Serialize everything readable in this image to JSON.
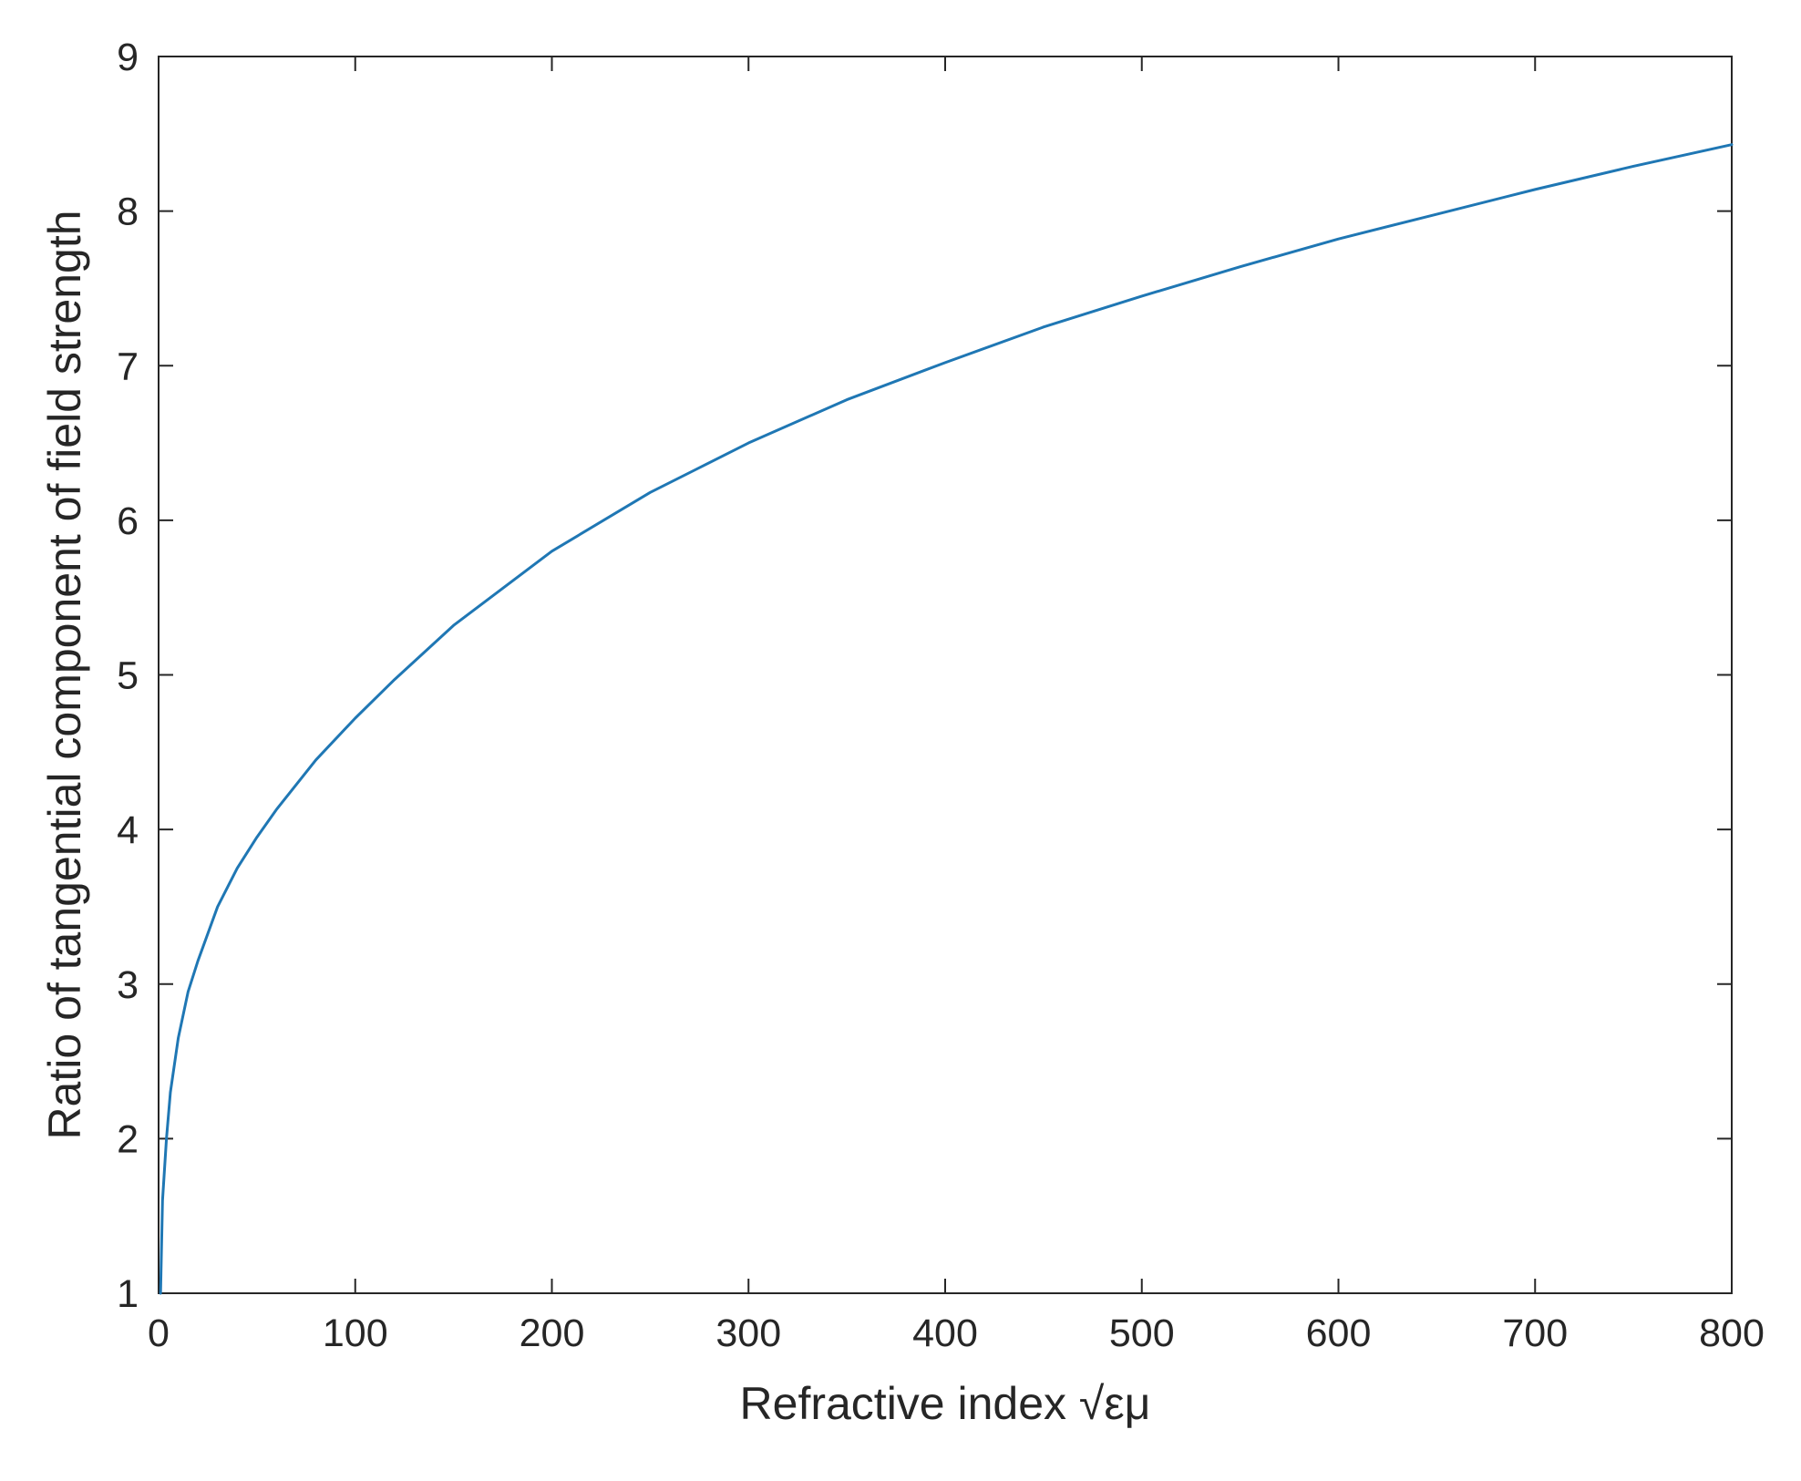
{
  "chart_data": {
    "type": "line",
    "title": "",
    "xlabel": "Refractive index  √εμ",
    "ylabel": "Ratio of tangential component of field strength",
    "xlim": [
      0,
      800
    ],
    "ylim": [
      1,
      9
    ],
    "xticks": [
      0,
      100,
      200,
      300,
      400,
      500,
      600,
      700,
      800
    ],
    "yticks": [
      1,
      2,
      3,
      4,
      5,
      6,
      7,
      8,
      9
    ],
    "grid": false,
    "legend": "none",
    "series": [
      {
        "color": "#1f77b4",
        "x": [
          1,
          2,
          4,
          6,
          10,
          15,
          20,
          30,
          40,
          50,
          60,
          80,
          100,
          120,
          150,
          200,
          250,
          300,
          350,
          400,
          450,
          500,
          550,
          600,
          650,
          700,
          750,
          800
        ],
        "y": [
          1.0,
          1.6,
          2.0,
          2.3,
          2.65,
          2.95,
          3.15,
          3.5,
          3.75,
          3.95,
          4.13,
          4.45,
          4.72,
          4.97,
          5.32,
          5.8,
          6.18,
          6.5,
          6.78,
          7.02,
          7.25,
          7.45,
          7.64,
          7.82,
          7.98,
          8.14,
          8.29,
          8.43
        ]
      }
    ]
  }
}
